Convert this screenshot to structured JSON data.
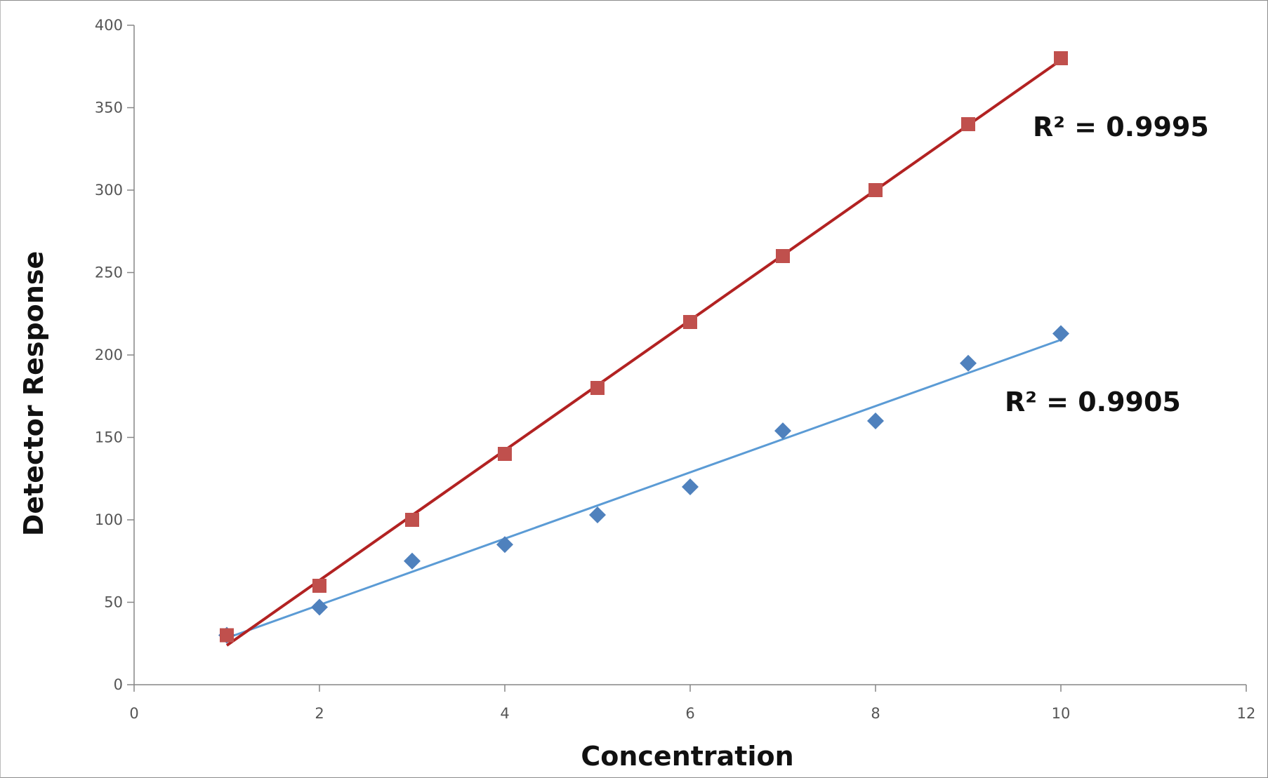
{
  "chart_data": {
    "type": "scatter",
    "title": "",
    "xlabel": "Concentration",
    "ylabel": "Detector Response",
    "xlim": [
      0,
      12
    ],
    "ylim": [
      0,
      400
    ],
    "x_ticks": [
      0,
      2,
      4,
      6,
      8,
      10,
      12
    ],
    "y_ticks": [
      0,
      50,
      100,
      150,
      200,
      250,
      300,
      350,
      400
    ],
    "grid": false,
    "legend": "none",
    "series": [
      {
        "marker": "square",
        "color": "#c0504d",
        "trendline_color": "#b22222",
        "x": [
          1,
          2,
          3,
          4,
          5,
          6,
          7,
          8,
          9,
          10
        ],
        "y": [
          30,
          60,
          100,
          140,
          180,
          220,
          260,
          300,
          340,
          380
        ],
        "trendline": {
          "slope": 39.45,
          "intercept": -15.6,
          "x_range": [
            1,
            10
          ]
        },
        "r_squared_label": "R² = 0.9995"
      },
      {
        "marker": "diamond",
        "color": "#4f81bd",
        "trendline_color": "#5b9bd5",
        "x": [
          1,
          2,
          3,
          4,
          5,
          6,
          7,
          8,
          9,
          10
        ],
        "y": [
          30,
          47,
          75,
          85,
          103,
          120,
          154,
          160,
          195,
          213
        ],
        "trendline": {
          "slope": 20.1,
          "intercept": 8.2,
          "x_range": [
            1,
            10
          ]
        },
        "r_squared_label": "R² = 0.9905"
      }
    ]
  }
}
